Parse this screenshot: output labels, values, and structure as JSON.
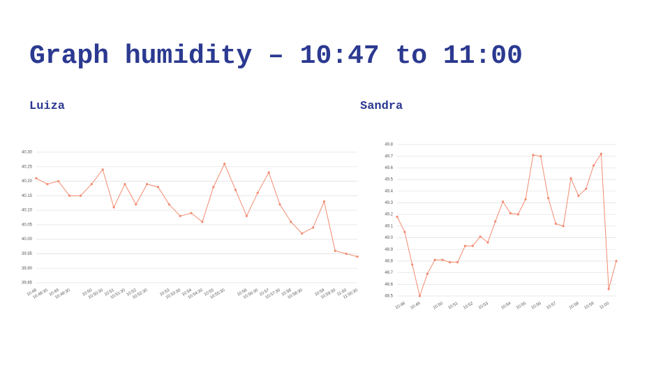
{
  "title": "Graph humidity – 10:47 to 11:00",
  "chart_data": [
    {
      "type": "line",
      "title": "Luiza",
      "categories": [
        "10:48",
        "10:48:30",
        "10:49",
        "10:49:30",
        null,
        "10:50",
        "10:50:30",
        "10:51",
        "10:51:30",
        "10:52",
        "10:52:30",
        null,
        "10:53",
        "10:53:30",
        "10:54",
        "10:54:30",
        "10:55",
        "10:55:30",
        null,
        "10:56",
        "10:56:30",
        "10:57",
        "10:57:30",
        "10:58",
        "10:58:30",
        null,
        "10:59",
        "10:59:30",
        "11:00",
        "11:00:30"
      ],
      "color": "#f28b70",
      "values": [
        40.21,
        40.19,
        40.2,
        40.15,
        40.15,
        40.19,
        40.24,
        40.11,
        40.19,
        40.12,
        40.19,
        40.18,
        40.12,
        40.08,
        40.09,
        40.06,
        40.18,
        40.26,
        40.17,
        40.08,
        40.16,
        40.23,
        40.12,
        40.06,
        40.02,
        40.04,
        40.13,
        39.96,
        39.95,
        39.94
      ],
      "ylim": [
        39.85,
        40.3
      ],
      "yticks": [
        39.85,
        {
          "value": 39.9,
          "label": "39.90"
        },
        39.95,
        {
          "value": 40.0,
          "label": "40.00"
        },
        40.05,
        {
          "value": 40.1,
          "label": "40.10"
        },
        40.15,
        {
          "value": 40.2,
          "label": "40.20"
        },
        40.25,
        {
          "value": 40.3,
          "label": "40.30"
        }
      ],
      "grid": true
    },
    {
      "type": "line",
      "title": "Sandra",
      "categories": [
        null,
        "10:48",
        null,
        "10:49",
        null,
        null,
        "10:50",
        null,
        "10:51",
        null,
        "10:52",
        null,
        "10:53",
        null,
        null,
        "10:54",
        null,
        "10:55",
        null,
        "10:56",
        null,
        "10:57",
        null,
        null,
        "10:58",
        null,
        "10:59",
        null,
        "11:00",
        null
      ],
      "color": "#f28b70",
      "values": [
        49.18,
        49.05,
        48.77,
        48.5,
        48.69,
        48.81,
        48.81,
        48.79,
        48.79,
        48.93,
        48.93,
        49.01,
        48.96,
        49.14,
        49.31,
        49.21,
        49.2,
        49.33,
        49.71,
        49.7,
        49.34,
        49.12,
        49.1,
        49.51,
        49.36,
        49.42,
        49.62,
        49.72,
        48.56,
        48.8
      ],
      "ylim": [
        48.5,
        49.8
      ],
      "yticks": [
        48.5,
        48.6,
        48.7,
        48.8,
        48.9,
        {
          "value": 49.0,
          "label": "49.0"
        },
        49.1,
        49.2,
        49.3,
        49.4,
        49.5,
        49.6,
        49.7,
        49.8
      ],
      "grid": true
    }
  ]
}
